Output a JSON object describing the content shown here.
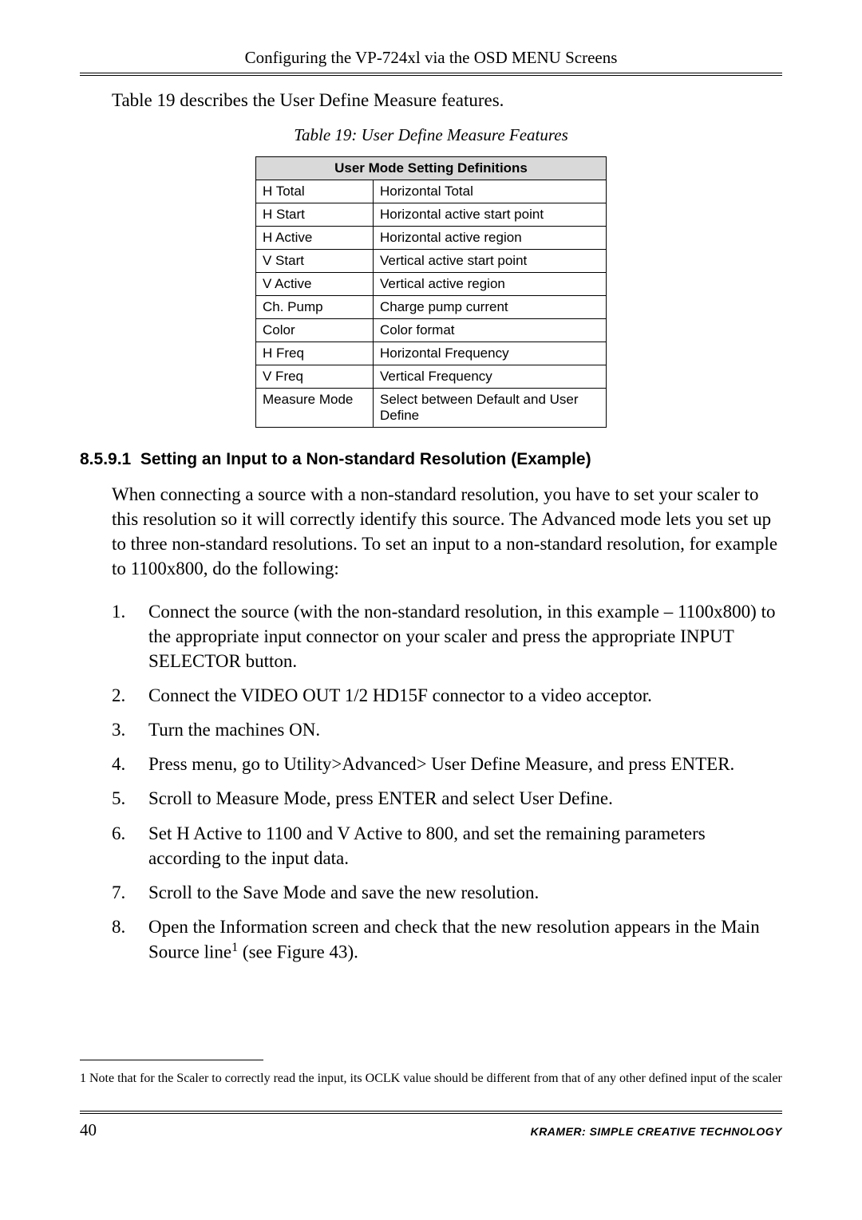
{
  "header": {
    "title": "Configuring the VP-724xl via the OSD MENU Screens"
  },
  "intro": "Table 19 describes the User Define Measure features.",
  "table": {
    "caption": "Table 19: User Define Measure Features",
    "header": "User Mode Setting Definitions",
    "rows": [
      {
        "k": "H Total",
        "v": "Horizontal Total"
      },
      {
        "k": "H Start",
        "v": "Horizontal active start point"
      },
      {
        "k": "H Active",
        "v": "Horizontal active region"
      },
      {
        "k": "V Start",
        "v": "Vertical active start point"
      },
      {
        "k": "V Active",
        "v": "Vertical active region"
      },
      {
        "k": "Ch. Pump",
        "v": "Charge pump current"
      },
      {
        "k": "Color",
        "v": "Color format"
      },
      {
        "k": "H Freq",
        "v": "Horizontal Frequency"
      },
      {
        "k": "V Freq",
        "v": "Vertical Frequency"
      },
      {
        "k": "Measure Mode",
        "v": "Select between Default and User Define"
      }
    ]
  },
  "section": {
    "number": "8.5.9.1",
    "title": "Setting an Input to a Non-standard Resolution (Example)"
  },
  "para": "When connecting a source with a non-standard resolution, you have to set your scaler to this resolution so it will correctly identify this source. The Advanced mode lets you set up to three non-standard resolutions. To set an input to a non-standard resolution, for example to 1100x800, do the following:",
  "steps": [
    "Connect the source (with the non-standard resolution, in this example – 1100x800) to the appropriate input connector on your scaler and press the appropriate INPUT SELECTOR button.",
    "Connect the VIDEO OUT 1/2 HD15F connector to a video acceptor.",
    "Turn the machines ON.",
    "Press menu, go to Utility>Advanced> User Define Measure, and press ENTER.",
    "Scroll to Measure Mode, press ENTER and select User Define.",
    "Set H Active to 1100 and V Active to 800, and set the remaining parameters according to the input data.",
    "Scroll to the Save Mode and save the new resolution."
  ],
  "step8": {
    "pre": "Open the Information screen and check that the new resolution appears in the Main Source line",
    "sup": "1",
    "post": " (see Figure 43)."
  },
  "footnote": {
    "marker": "1",
    "text": "Note that for the Scaler to correctly read the input, its OCLK value should be different from that of any other defined input of the scaler"
  },
  "footer": {
    "page": "40",
    "brand": "KRAMER:  SIMPLE CREATIVE TECHNOLOGY"
  }
}
